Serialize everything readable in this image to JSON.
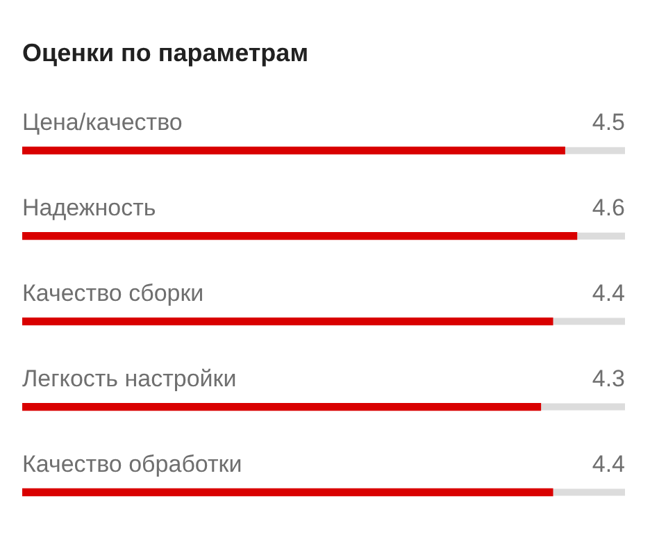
{
  "chart_data": {
    "type": "bar",
    "orientation": "horizontal",
    "title": "Оценки по параметрам",
    "categories": [
      "Цена/качество",
      "Надежность",
      "Качество сборки",
      "Легкость настройки",
      "Качество обработки"
    ],
    "values": [
      4.5,
      4.6,
      4.4,
      4.3,
      4.4
    ],
    "color": "#d90000",
    "xlim": [
      0,
      5
    ],
    "data_labels": true,
    "tick_labels": false,
    "legend": false
  }
}
